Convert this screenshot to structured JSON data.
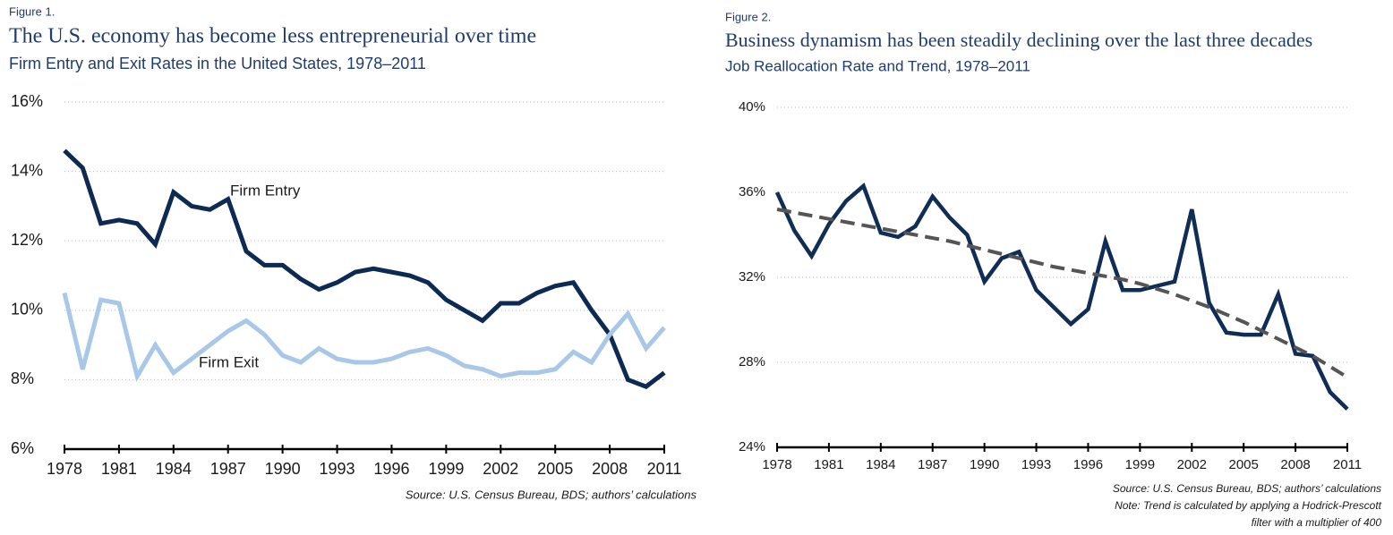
{
  "chart_data": [
    {
      "type": "line",
      "figure_label": "Figure 1.",
      "title": "The U.S. economy has become less entrepreneurial over time",
      "subtitle": "Firm Entry and Exit Rates in the United States, 1978–2011",
      "source": "Source: U.S. Census Bureau, BDS; authors’ calculations",
      "x": [
        1978,
        1979,
        1980,
        1981,
        1982,
        1983,
        1984,
        1985,
        1986,
        1987,
        1988,
        1989,
        1990,
        1991,
        1992,
        1993,
        1994,
        1995,
        1996,
        1997,
        1998,
        1999,
        2000,
        2001,
        2002,
        2003,
        2004,
        2005,
        2006,
        2007,
        2008,
        2009,
        2010,
        2011
      ],
      "xlim": [
        1978,
        2011
      ],
      "xticks": [
        1978,
        1981,
        1984,
        1987,
        1990,
        1993,
        1996,
        1999,
        2002,
        2005,
        2008,
        2011
      ],
      "ylim": [
        6,
        16
      ],
      "yticks": [
        {
          "value": 6,
          "label": "6%"
        },
        {
          "value": 8,
          "label": "8%"
        },
        {
          "value": 10,
          "label": "10%"
        },
        {
          "value": 12,
          "label": "12%"
        },
        {
          "value": 14,
          "label": "14%"
        },
        {
          "value": 16,
          "label": "16%"
        }
      ],
      "grid": true,
      "series": [
        {
          "name": "Firm Entry",
          "color": "#0d2b52",
          "values": [
            14.6,
            14.1,
            12.5,
            12.6,
            12.5,
            11.9,
            13.4,
            13.0,
            12.9,
            13.2,
            11.7,
            11.3,
            11.3,
            10.9,
            10.6,
            10.8,
            11.1,
            11.2,
            11.1,
            11.0,
            10.8,
            10.3,
            10.0,
            9.7,
            10.2,
            10.2,
            10.5,
            10.7,
            10.8,
            10.0,
            9.3,
            8.0,
            7.8,
            8.2
          ]
        },
        {
          "name": "Firm Exit",
          "color": "#a9c8e8",
          "values": [
            10.5,
            8.3,
            10.3,
            10.2,
            8.1,
            9.0,
            8.2,
            8.6,
            9.0,
            9.4,
            9.7,
            9.3,
            8.7,
            8.5,
            8.9,
            8.6,
            8.5,
            8.5,
            8.6,
            8.8,
            8.9,
            8.7,
            8.4,
            8.3,
            8.1,
            8.2,
            8.2,
            8.3,
            8.8,
            8.5,
            9.3,
            9.9,
            8.9,
            9.5
          ]
        }
      ]
    },
    {
      "type": "line",
      "figure_label": "Figure 2.",
      "title": "Business dynamism has been steadily declining over the last three decades",
      "subtitle": "Job Reallocation Rate and Trend, 1978–2011",
      "source": [
        "Source: U.S. Census Bureau, BDS; authors’ calculations",
        "Note: Trend is calculated by applying a Hodrick-Prescott",
        "filter with a multiplier of 400"
      ],
      "x": [
        1978,
        1979,
        1980,
        1981,
        1982,
        1983,
        1984,
        1985,
        1986,
        1987,
        1988,
        1989,
        1990,
        1991,
        1992,
        1993,
        1994,
        1995,
        1996,
        1997,
        1998,
        1999,
        2000,
        2001,
        2002,
        2003,
        2004,
        2005,
        2006,
        2007,
        2008,
        2009,
        2010,
        2011
      ],
      "xlim": [
        1978,
        2011
      ],
      "xticks": [
        1978,
        1981,
        1984,
        1987,
        1990,
        1993,
        1996,
        1999,
        2002,
        2005,
        2008,
        2011
      ],
      "ylim": [
        24,
        40
      ],
      "yticks": [
        {
          "value": 24,
          "label": "24%"
        },
        {
          "value": 28,
          "label": "28%"
        },
        {
          "value": 32,
          "label": "32%"
        },
        {
          "value": 36,
          "label": "36%"
        },
        {
          "value": 40,
          "label": "40%"
        }
      ],
      "grid": true,
      "series": [
        {
          "color": "#0f2d55",
          "values": [
            36.0,
            34.2,
            33.0,
            34.5,
            35.6,
            36.3,
            34.1,
            33.9,
            34.4,
            35.8,
            34.8,
            34.0,
            31.8,
            32.9,
            33.2,
            31.4,
            30.6,
            29.8,
            30.5,
            33.7,
            31.4,
            31.4,
            31.6,
            31.8,
            35.2,
            30.8,
            29.4,
            29.3,
            29.3,
            31.2,
            28.4,
            28.3,
            26.6,
            25.8
          ]
        },
        {
          "color": "#555555",
          "dashed": true,
          "values": [
            35.2,
            35.05,
            34.9,
            34.75,
            34.6,
            34.45,
            34.3,
            34.15,
            34.0,
            33.85,
            33.7,
            33.5,
            33.3,
            33.1,
            32.9,
            32.7,
            32.5,
            32.35,
            32.2,
            32.05,
            31.9,
            31.7,
            31.45,
            31.2,
            30.9,
            30.6,
            30.25,
            29.9,
            29.5,
            29.1,
            28.7,
            28.3,
            27.8,
            27.3
          ]
        }
      ]
    }
  ]
}
